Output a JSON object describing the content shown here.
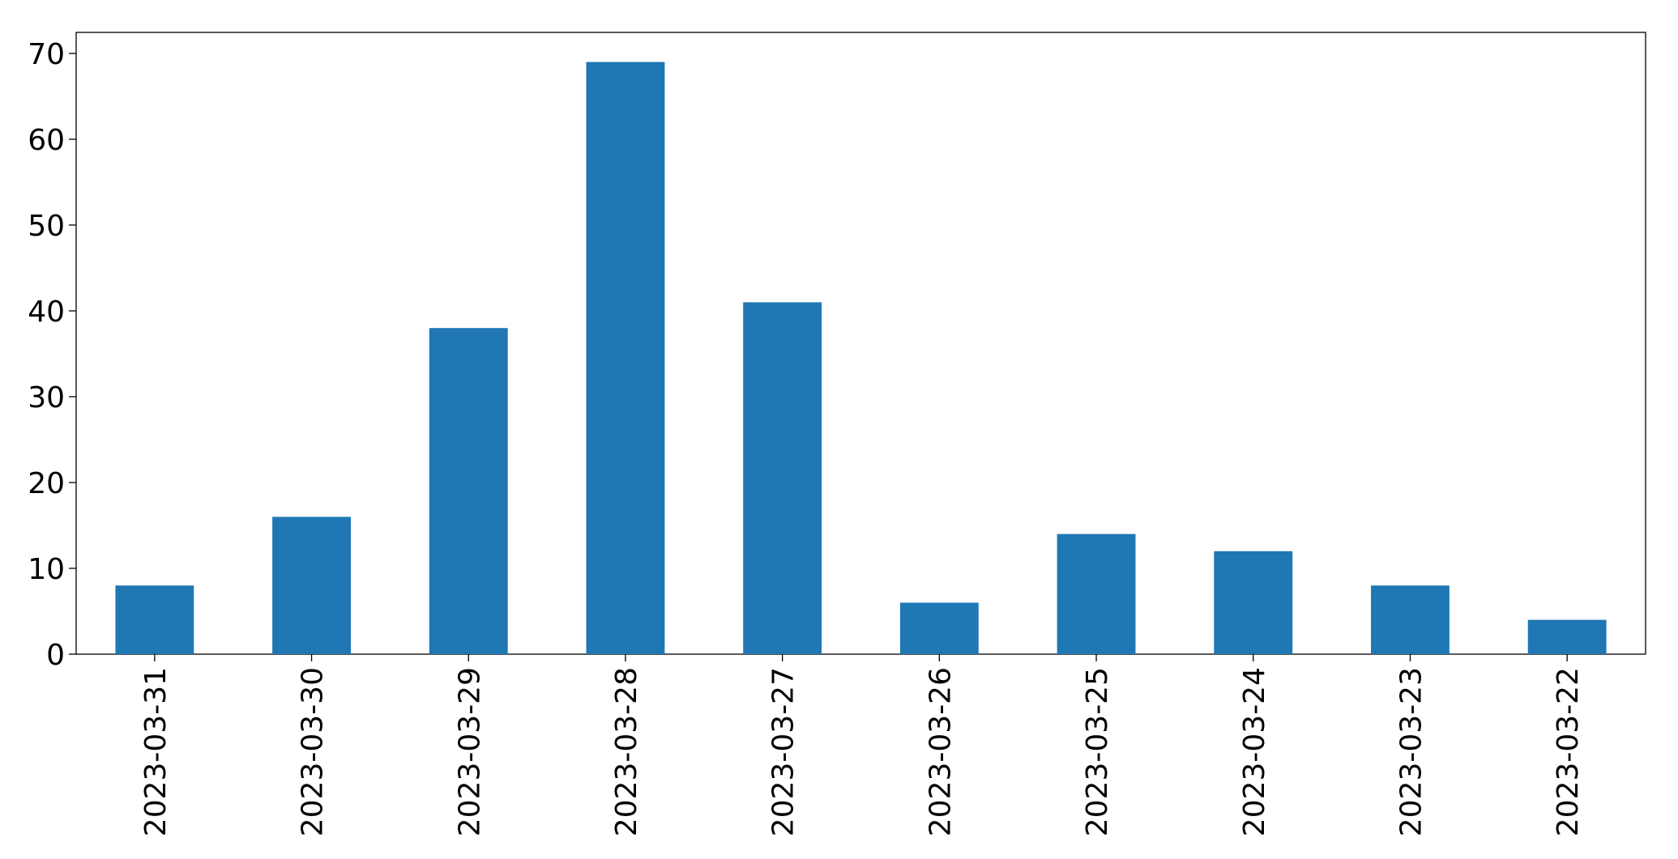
{
  "chart_data": {
    "type": "bar",
    "categories": [
      "2023-03-31",
      "2023-03-30",
      "2023-03-29",
      "2023-03-28",
      "2023-03-27",
      "2023-03-26",
      "2023-03-25",
      "2023-03-24",
      "2023-03-23",
      "2023-03-22"
    ],
    "values": [
      8,
      16,
      38,
      69,
      41,
      6,
      14,
      12,
      8,
      4
    ],
    "color": "#1f77b4",
    "ylim": [
      0,
      72.45
    ],
    "yticks": [
      0,
      10,
      20,
      30,
      40,
      50,
      60,
      70
    ],
    "grid": false
  }
}
